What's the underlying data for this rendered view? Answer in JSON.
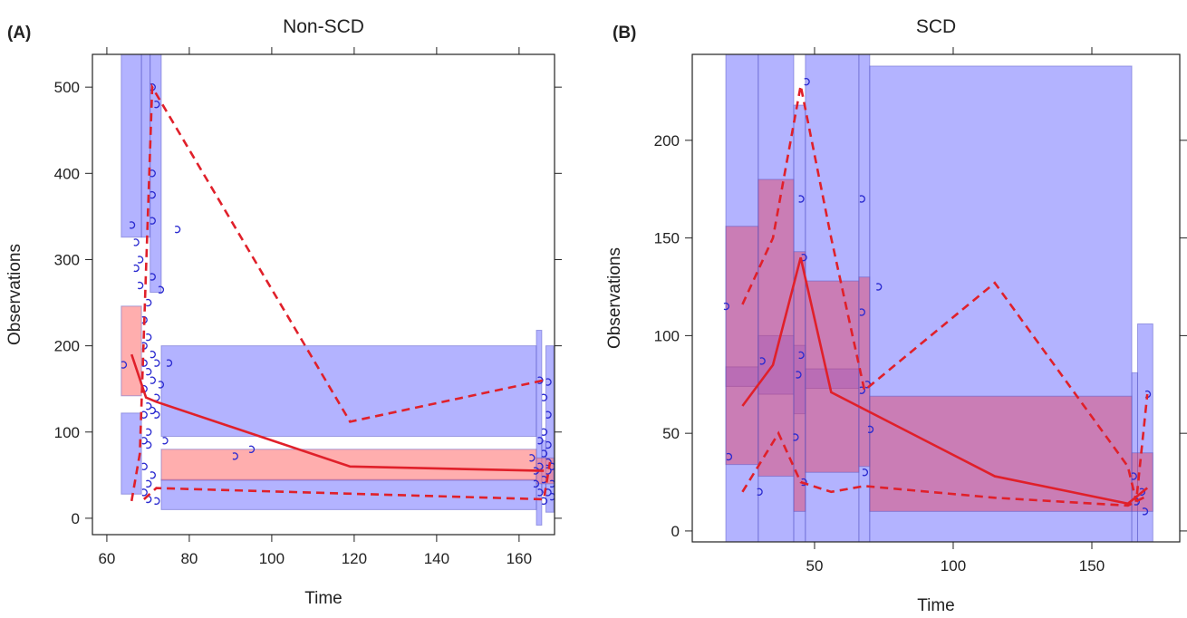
{
  "chart_data": [
    {
      "type": "vpc",
      "panel_label": "(A)",
      "title": "Non-SCD",
      "xlabel": "Time",
      "ylabel": "Observations",
      "xlim": [
        56.5,
        168.6
      ],
      "ylim": [
        -19,
        538
      ],
      "xticks": [
        60,
        80,
        100,
        120,
        140,
        160
      ],
      "yticks": [
        0,
        100,
        200,
        300,
        400,
        500
      ],
      "bands": [
        {
          "color": "rgba(128,128,255,0.6)",
          "rects": [
            {
              "x": [
                63.5,
                68.4
              ],
              "y": [
                326,
                560
              ]
            },
            {
              "x": [
                68.4,
                70.5
              ],
              "y": [
                326,
                560
              ]
            },
            {
              "x": [
                70.5,
                73.2
              ],
              "y": [
                262,
                560
              ]
            },
            {
              "x": [
                73.2,
                164.2
              ],
              "y": [
                95,
                200
              ]
            },
            {
              "x": [
                164.2,
                165.5
              ],
              "y": [
                -8,
                218
              ]
            },
            {
              "x": [
                166.5,
                168.4
              ],
              "y": [
                7,
                200
              ]
            },
            {
              "x": [
                63.5,
                68.4
              ],
              "y": [
                28,
                122
              ]
            },
            {
              "x": [
                73.2,
                164.2
              ],
              "y": [
                10,
                45
              ]
            },
            {
              "x": [
                165.5,
                166.5
              ],
              "y": [
                30,
                90
              ]
            }
          ]
        },
        {
          "color": "rgba(255,120,120,0.6)",
          "rects": [
            {
              "x": [
                63.5,
                68.4
              ],
              "y": [
                142,
                246
              ]
            },
            {
              "x": [
                73.2,
                164.2
              ],
              "y": [
                44,
                80
              ]
            },
            {
              "x": [
                164.2,
                168.4
              ],
              "y": [
                40,
                70
              ]
            }
          ]
        }
      ],
      "lines": [
        {
          "color": "#e0202a",
          "dashed": false,
          "x": [
            66,
            69.5,
            72,
            119,
            166
          ],
          "values": [
            190,
            140,
            135,
            60,
            55
          ]
        },
        {
          "color": "#e0202a",
          "dashed": true,
          "x": [
            66,
            68,
            71,
            119,
            166
          ],
          "values": [
            20,
            75,
            500,
            112,
            160
          ]
        },
        {
          "color": "#e0202a",
          "dashed": true,
          "x": [
            69,
            72,
            166,
            167.5
          ],
          "values": [
            22,
            35,
            22,
            65
          ]
        }
      ],
      "points": {
        "color": "#2b2bd0",
        "x": [
          64,
          66,
          67,
          67,
          68,
          68,
          69,
          69,
          69,
          69,
          69,
          69,
          69,
          69,
          70,
          70,
          70,
          70,
          70,
          70,
          70,
          70,
          71,
          71,
          71,
          71,
          71,
          71,
          71,
          71,
          71,
          72,
          72,
          72,
          72,
          72,
          73,
          73,
          74,
          75,
          77,
          91,
          95,
          163,
          164,
          164,
          165,
          165,
          165,
          165,
          166,
          166,
          166,
          166,
          166,
          167,
          167,
          167,
          167,
          167,
          167,
          168,
          168,
          168
        ],
        "y": [
          178,
          340,
          320,
          290,
          270,
          300,
          230,
          200,
          180,
          150,
          120,
          90,
          60,
          30,
          250,
          210,
          170,
          130,
          100,
          85,
          40,
          22,
          345,
          500,
          400,
          375,
          280,
          190,
          160,
          125,
          50,
          480,
          180,
          140,
          120,
          20,
          265,
          155,
          90,
          180,
          335,
          72,
          80,
          70,
          55,
          40,
          30,
          60,
          90,
          160,
          20,
          45,
          75,
          100,
          140,
          30,
          55,
          65,
          85,
          120,
          158,
          40,
          25,
          60
        ]
      }
    },
    {
      "type": "vpc",
      "panel_label": "(B)",
      "title": "SCD",
      "xlabel": "Time",
      "ylabel": "Observations",
      "xlim": [
        5.9,
        181.7
      ],
      "ylim": [
        -5.6,
        244
      ],
      "xticks": [
        50,
        100,
        150
      ],
      "yticks": [
        0,
        50,
        100,
        150,
        200
      ],
      "bands": [
        {
          "color": "rgba(128,128,255,0.6)",
          "rects": [
            {
              "x": [
                18,
                29.7
              ],
              "y": [
                -10,
                250
              ]
            },
            {
              "x": [
                29.7,
                42.5
              ],
              "y": [
                -10,
                250
              ]
            },
            {
              "x": [
                42.5,
                46.7
              ],
              "y": [
                -10,
                218
              ]
            },
            {
              "x": [
                46.7,
                66
              ],
              "y": [
                -10,
                250
              ]
            },
            {
              "x": [
                66,
                69.9
              ],
              "y": [
                -10,
                250
              ]
            },
            {
              "x": [
                69.9,
                164.4
              ],
              "y": [
                -10,
                238
              ]
            },
            {
              "x": [
                164.4,
                166.5
              ],
              "y": [
                -10,
                81
              ]
            },
            {
              "x": [
                166.5,
                172
              ],
              "y": [
                -10,
                106
              ]
            },
            {
              "x": [
                18,
                29.7
              ],
              "y": [
                74,
                84
              ]
            },
            {
              "x": [
                29.7,
                42.5
              ],
              "y": [
                70,
                100
              ]
            },
            {
              "x": [
                42.5,
                46.7
              ],
              "y": [
                60,
                95
              ]
            },
            {
              "x": [
                46.7,
                66
              ],
              "y": [
                73,
                83
              ]
            }
          ]
        },
        {
          "color": "rgba(230,60,90,0.45)",
          "rects": [
            {
              "x": [
                18,
                29.7
              ],
              "y": [
                34,
                156
              ]
            },
            {
              "x": [
                29.7,
                42.5
              ],
              "y": [
                28,
                180
              ]
            },
            {
              "x": [
                42.5,
                46.7
              ],
              "y": [
                10,
                143
              ]
            },
            {
              "x": [
                46.7,
                66
              ],
              "y": [
                30,
                128
              ]
            },
            {
              "x": [
                66,
                69.9
              ],
              "y": [
                33,
                130
              ]
            },
            {
              "x": [
                69.9,
                164.4
              ],
              "y": [
                10,
                69
              ]
            },
            {
              "x": [
                164.4,
                172
              ],
              "y": [
                10,
                40
              ]
            }
          ]
        }
      ],
      "lines": [
        {
          "color": "#e0202a",
          "dashed": false,
          "x": [
            24,
            35,
            45,
            56,
            115,
            163,
            170
          ],
          "values": [
            64,
            85,
            140,
            71,
            28,
            14,
            22
          ]
        },
        {
          "color": "#e0202a",
          "dashed": true,
          "x": [
            24,
            35,
            45,
            56,
            68,
            115,
            163,
            166,
            170
          ],
          "values": [
            116,
            150,
            228,
            150,
            72,
            127,
            33,
            15,
            70
          ]
        },
        {
          "color": "#e0202a",
          "dashed": true,
          "x": [
            24,
            37,
            45,
            56,
            68,
            115,
            163,
            170
          ],
          "values": [
            20,
            50,
            25,
            20,
            23,
            17,
            13,
            18
          ]
        }
      ],
      "points": {
        "color": "#2b2bd0",
        "x": [
          18,
          19,
          31,
          30,
          43,
          44,
          45,
          46,
          47,
          45,
          46,
          67,
          67,
          67,
          68,
          69,
          70,
          73,
          165,
          166,
          168,
          170,
          169
        ],
        "y": [
          115,
          38,
          87,
          20,
          48,
          80,
          90,
          25,
          230,
          170,
          140,
          170,
          112,
          72,
          30,
          75,
          52,
          125,
          28,
          15,
          20,
          70,
          10
        ]
      }
    }
  ]
}
